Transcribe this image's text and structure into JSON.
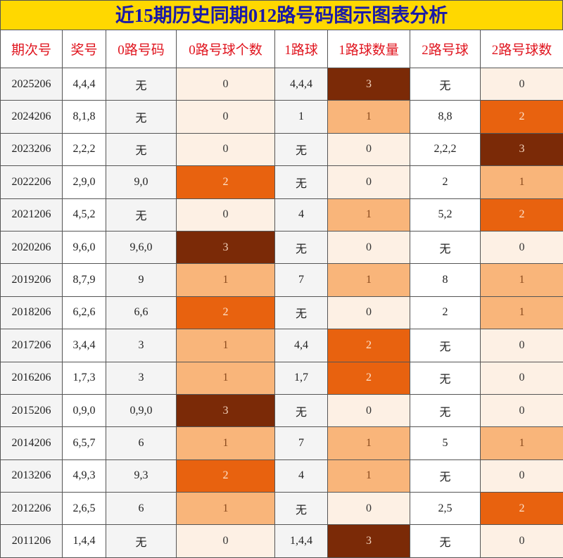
{
  "title": "近15期历史同期012路号码图示图表分析",
  "table": {
    "headers": [
      "期次号",
      "奖号",
      "0路号码",
      "0路号球个数",
      "1路球",
      "1路球数量",
      "2路号球",
      "2路号球数"
    ],
    "rows": [
      [
        "2025206",
        "4,4,4",
        "无",
        0,
        "4,4,4",
        3,
        "无",
        0
      ],
      [
        "2024206",
        "8,1,8",
        "无",
        0,
        "1",
        1,
        "8,8",
        2
      ],
      [
        "2023206",
        "2,2,2",
        "无",
        0,
        "无",
        0,
        "2,2,2",
        3
      ],
      [
        "2022206",
        "2,9,0",
        "9,0",
        2,
        "无",
        0,
        "2",
        1
      ],
      [
        "2021206",
        "4,5,2",
        "无",
        0,
        "4",
        1,
        "5,2",
        2
      ],
      [
        "2020206",
        "9,6,0",
        "9,6,0",
        3,
        "无",
        0,
        "无",
        0
      ],
      [
        "2019206",
        "8,7,9",
        "9",
        1,
        "7",
        1,
        "8",
        1
      ],
      [
        "2018206",
        "6,2,6",
        "6,6",
        2,
        "无",
        0,
        "2",
        1
      ],
      [
        "2017206",
        "3,4,4",
        "3",
        1,
        "4,4",
        2,
        "无",
        0
      ],
      [
        "2016206",
        "1,7,3",
        "3",
        1,
        "1,7",
        2,
        "无",
        0
      ],
      [
        "2015206",
        "0,9,0",
        "0,9,0",
        3,
        "无",
        0,
        "无",
        0
      ],
      [
        "2014206",
        "6,5,7",
        "6",
        1,
        "7",
        1,
        "5",
        1
      ],
      [
        "2013206",
        "4,9,3",
        "9,3",
        2,
        "4",
        1,
        "无",
        0
      ],
      [
        "2012206",
        "2,6,5",
        "6",
        1,
        "无",
        0,
        "2,5",
        2
      ],
      [
        "2011206",
        "1,4,4",
        "无",
        0,
        "1,4,4",
        3,
        "无",
        0
      ]
    ]
  }
}
